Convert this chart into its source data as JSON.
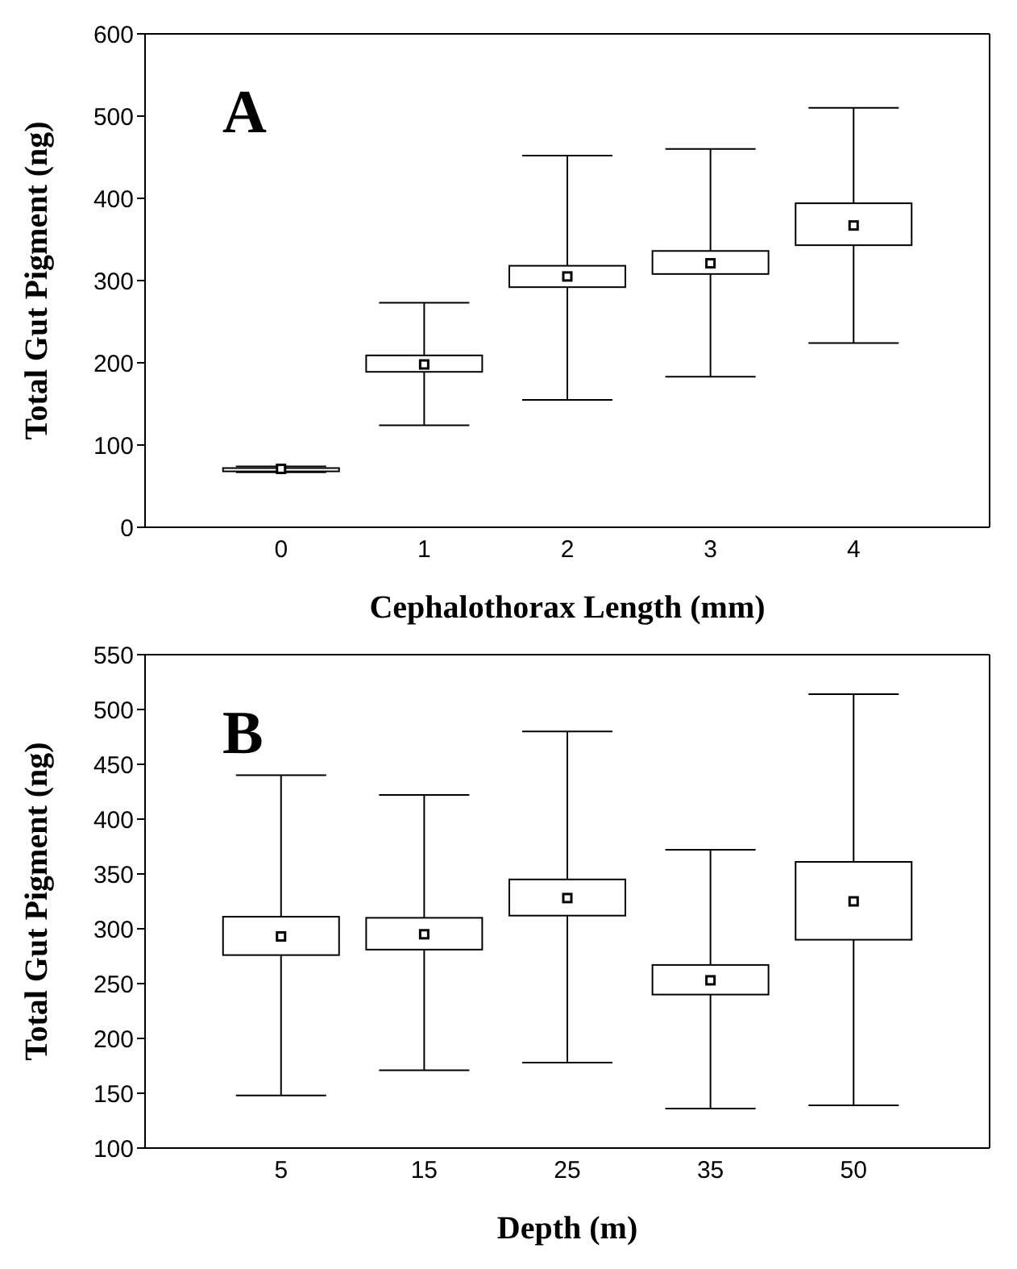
{
  "chart_data": [
    {
      "type": "box",
      "annotations": [
        "A"
      ],
      "xlabel": "Cephalothorax Length (mm)",
      "ylabel": "Total Gut Pigment (ng)",
      "categories": [
        "0",
        "1",
        "2",
        "3",
        "4"
      ],
      "ylim": [
        0,
        600
      ],
      "yticks": [
        0,
        100,
        200,
        300,
        400,
        500,
        600
      ],
      "boxes": [
        {
          "low": 67,
          "q1": 68,
          "q3": 72,
          "high": 74,
          "mean": 71
        },
        {
          "low": 124,
          "q1": 189,
          "q3": 209,
          "high": 273,
          "mean": 198
        },
        {
          "low": 155,
          "q1": 292,
          "q3": 318,
          "high": 452,
          "mean": 305
        },
        {
          "low": 183,
          "q1": 308,
          "q3": 336,
          "high": 460,
          "mean": 321
        },
        {
          "low": 224,
          "q1": 343,
          "q3": 394,
          "high": 510,
          "mean": 367
        }
      ]
    },
    {
      "type": "box",
      "annotations": [
        "B"
      ],
      "xlabel": "Depth (m)",
      "ylabel": "Total Gut Pigment (ng)",
      "categories": [
        "5",
        "15",
        "25",
        "35",
        "50"
      ],
      "ylim": [
        100,
        550
      ],
      "yticks": [
        100,
        150,
        200,
        250,
        300,
        350,
        400,
        450,
        500,
        550
      ],
      "boxes": [
        {
          "low": 148,
          "q1": 276,
          "q3": 311,
          "high": 440,
          "mean": 293
        },
        {
          "low": 171,
          "q1": 281,
          "q3": 310,
          "high": 422,
          "mean": 295
        },
        {
          "low": 178,
          "q1": 312,
          "q3": 345,
          "high": 480,
          "mean": 328
        },
        {
          "low": 136,
          "q1": 240,
          "q3": 267,
          "high": 372,
          "mean": 253
        },
        {
          "low": 139,
          "q1": 290,
          "q3": 361,
          "high": 514,
          "mean": 325
        }
      ]
    }
  ]
}
